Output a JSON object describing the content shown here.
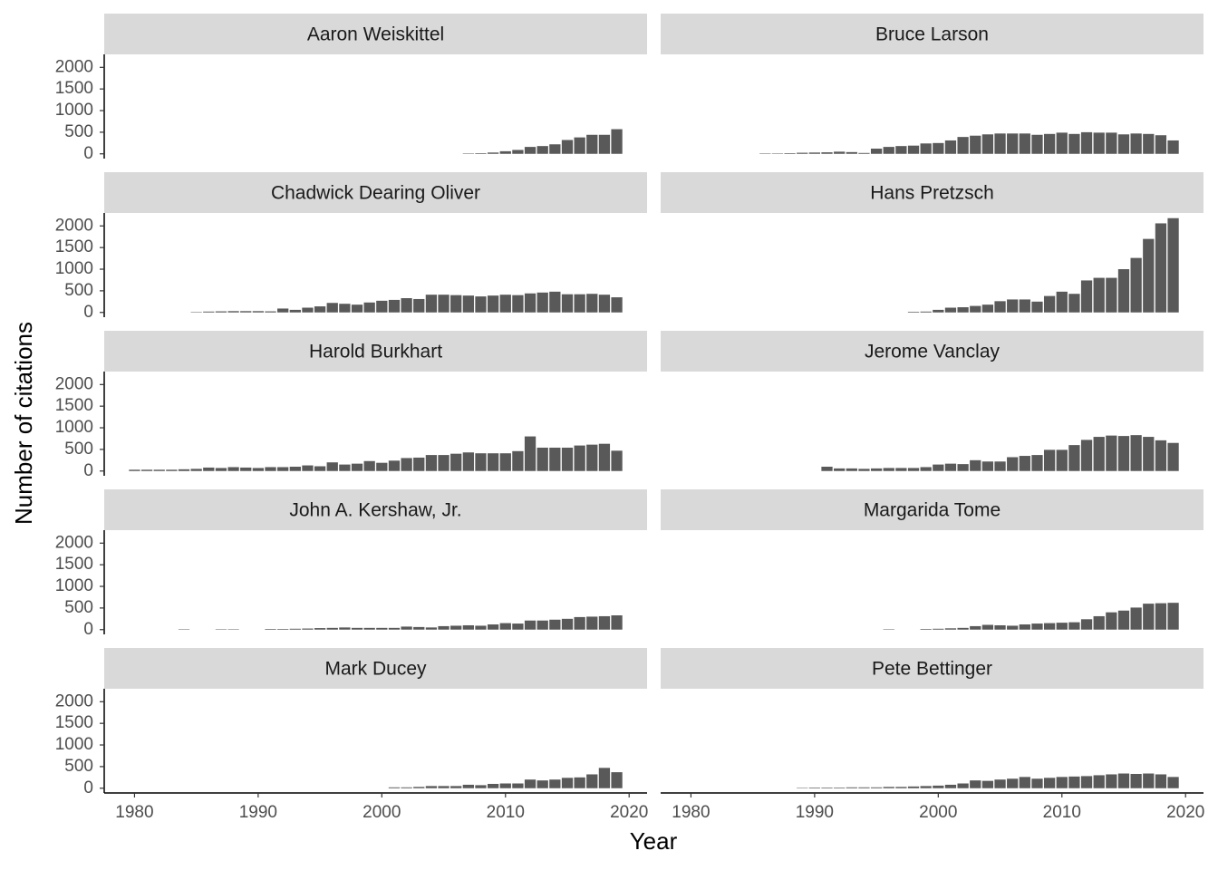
{
  "chart_data": {
    "type": "bar",
    "color": "#595959",
    "xlabel": "Year",
    "ylabel": "Number of citations",
    "xlim": [
      1977.55,
      2021.45
    ],
    "ylim": [
      -110,
      2300
    ],
    "xticks": [
      1980,
      1990,
      2000,
      2010,
      2020
    ],
    "yticks": [
      0,
      500,
      1000,
      1500,
      2000
    ],
    "facets": [
      {
        "title": "Aaron Weiskittel",
        "x": [
          2007,
          2008,
          2009,
          2010,
          2011,
          2012,
          2013,
          2014,
          2015,
          2016,
          2017,
          2018,
          2019
        ],
        "values": [
          10,
          15,
          30,
          60,
          90,
          160,
          180,
          220,
          320,
          380,
          440,
          440,
          570
        ]
      },
      {
        "title": "Bruce Larson",
        "x": [
          1986,
          1987,
          1988,
          1989,
          1990,
          1991,
          1992,
          1993,
          1994,
          1995,
          1996,
          1997,
          1998,
          1999,
          2000,
          2001,
          2002,
          2003,
          2004,
          2005,
          2006,
          2007,
          2008,
          2009,
          2010,
          2011,
          2012,
          2013,
          2014,
          2015,
          2016,
          2017,
          2018,
          2019
        ],
        "values": [
          10,
          10,
          15,
          25,
          30,
          35,
          50,
          40,
          20,
          120,
          160,
          180,
          190,
          240,
          250,
          310,
          390,
          420,
          450,
          470,
          470,
          470,
          440,
          460,
          490,
          460,
          500,
          490,
          490,
          450,
          470,
          460,
          430,
          310
        ]
      },
      {
        "title": "Chadwick Dearing Oliver",
        "x": [
          1985,
          1986,
          1987,
          1988,
          1989,
          1990,
          1991,
          1992,
          1993,
          1994,
          1995,
          1996,
          1997,
          1998,
          1999,
          2000,
          2001,
          2002,
          2003,
          2004,
          2005,
          2006,
          2007,
          2008,
          2009,
          2010,
          2011,
          2012,
          2013,
          2014,
          2015,
          2016,
          2017,
          2018,
          2019
        ],
        "values": [
          10,
          20,
          25,
          30,
          30,
          30,
          25,
          90,
          60,
          110,
          140,
          220,
          200,
          180,
          230,
          270,
          290,
          330,
          310,
          410,
          410,
          400,
          390,
          370,
          390,
          410,
          400,
          440,
          460,
          480,
          420,
          420,
          430,
          410,
          350
        ]
      },
      {
        "title": "Hans Pretzsch",
        "x": [
          1998,
          1999,
          2000,
          2001,
          2002,
          2003,
          2004,
          2005,
          2006,
          2007,
          2008,
          2009,
          2010,
          2011,
          2012,
          2013,
          2014,
          2015,
          2016,
          2017,
          2018,
          2019
        ],
        "values": [
          15,
          20,
          60,
          110,
          120,
          150,
          180,
          260,
          300,
          300,
          250,
          380,
          480,
          430,
          740,
          800,
          800,
          1000,
          1260,
          1700,
          2060,
          2180
        ]
      },
      {
        "title": "Harold Burkhart",
        "x": [
          1980,
          1981,
          1982,
          1983,
          1984,
          1985,
          1986,
          1987,
          1988,
          1989,
          1990,
          1991,
          1992,
          1993,
          1994,
          1995,
          1996,
          1997,
          1998,
          1999,
          2000,
          2001,
          2002,
          2003,
          2004,
          2005,
          2006,
          2007,
          2008,
          2009,
          2010,
          2011,
          2012,
          2013,
          2014,
          2015,
          2016,
          2017,
          2018,
          2019
        ],
        "values": [
          30,
          30,
          30,
          30,
          40,
          50,
          80,
          70,
          90,
          80,
          70,
          90,
          90,
          100,
          130,
          110,
          200,
          150,
          170,
          230,
          190,
          240,
          300,
          310,
          370,
          370,
          400,
          430,
          410,
          410,
          410,
          460,
          800,
          540,
          540,
          540,
          590,
          610,
          630,
          470
        ]
      },
      {
        "title": "Jerome Vanclay",
        "x": [
          1991,
          1992,
          1993,
          1994,
          1995,
          1996,
          1997,
          1998,
          1999,
          2000,
          2001,
          2002,
          2003,
          2004,
          2005,
          2006,
          2007,
          2008,
          2009,
          2010,
          2011,
          2012,
          2013,
          2014,
          2015,
          2016,
          2017,
          2018,
          2019
        ],
        "values": [
          100,
          60,
          60,
          50,
          60,
          70,
          70,
          70,
          90,
          150,
          170,
          160,
          250,
          220,
          220,
          320,
          350,
          370,
          490,
          490,
          600,
          720,
          790,
          820,
          810,
          830,
          790,
          710,
          650
        ]
      },
      {
        "title": "John A. Kershaw, Jr.",
        "x": [
          1984,
          1987,
          1988,
          1991,
          1992,
          1993,
          1994,
          1995,
          1996,
          1997,
          1998,
          1999,
          2000,
          2001,
          2002,
          2003,
          2004,
          2005,
          2006,
          2007,
          2008,
          2009,
          2010,
          2011,
          2012,
          2013,
          2014,
          2015,
          2016,
          2017,
          2018,
          2019
        ],
        "values": [
          10,
          10,
          10,
          15,
          15,
          20,
          25,
          35,
          40,
          50,
          40,
          40,
          40,
          40,
          70,
          60,
          50,
          80,
          90,
          100,
          90,
          120,
          150,
          140,
          210,
          210,
          230,
          250,
          290,
          300,
          310,
          330
        ]
      },
      {
        "title": "Margarida Tome",
        "x": [
          1996,
          1999,
          2000,
          2001,
          2002,
          2003,
          2004,
          2005,
          2006,
          2007,
          2008,
          2009,
          2010,
          2011,
          2012,
          2013,
          2014,
          2015,
          2016,
          2017,
          2018,
          2019
        ],
        "values": [
          10,
          15,
          20,
          30,
          40,
          80,
          110,
          100,
          90,
          120,
          140,
          150,
          160,
          170,
          240,
          310,
          400,
          440,
          510,
          600,
          610,
          620
        ]
      },
      {
        "title": "Mark Ducey",
        "x": [
          2001,
          2002,
          2003,
          2004,
          2005,
          2006,
          2007,
          2008,
          2009,
          2010,
          2011,
          2012,
          2013,
          2014,
          2015,
          2016,
          2017,
          2018,
          2019
        ],
        "values": [
          20,
          20,
          30,
          50,
          50,
          50,
          80,
          70,
          100,
          110,
          110,
          200,
          180,
          200,
          240,
          250,
          320,
          470,
          370
        ]
      },
      {
        "title": "Pete Bettinger",
        "x": [
          1989,
          1990,
          1991,
          1992,
          1993,
          1994,
          1995,
          1996,
          1997,
          1998,
          1999,
          2000,
          2001,
          2002,
          2003,
          2004,
          2005,
          2006,
          2007,
          2008,
          2009,
          2010,
          2011,
          2012,
          2013,
          2014,
          2015,
          2016,
          2017,
          2018,
          2019
        ],
        "values": [
          10,
          15,
          15,
          15,
          20,
          20,
          20,
          30,
          30,
          40,
          50,
          60,
          80,
          110,
          180,
          170,
          200,
          220,
          260,
          220,
          240,
          260,
          270,
          280,
          300,
          320,
          340,
          330,
          340,
          320,
          260
        ]
      }
    ]
  }
}
